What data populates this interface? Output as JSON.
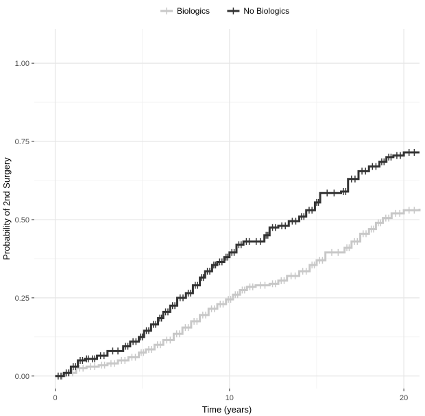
{
  "chart_data": {
    "type": "line",
    "subtype": "step (Kaplan-Meier cumulative incidence with censor marks)",
    "title": "",
    "xlabel": "Time (years)",
    "ylabel": "Probability of 2nd Surgery",
    "xlim": [
      -1.2,
      20.9
    ],
    "ylim": [
      -0.04,
      1.11
    ],
    "x_ticks": [
      0,
      10,
      20
    ],
    "x_tick_labels": [
      "0",
      "10",
      "20"
    ],
    "y_ticks": [
      0.0,
      0.25,
      0.5,
      0.75,
      1.0
    ],
    "y_tick_labels": [
      "0.00",
      "0.25",
      "0.50",
      "0.75",
      "1.00"
    ],
    "grid": true,
    "background": "white",
    "legend": {
      "position": "top",
      "entries": [
        "Biologics",
        "No Biologics"
      ]
    },
    "series": [
      {
        "name": "No Biologics",
        "color": "#333333",
        "x": [
          0,
          0.5,
          0.9,
          1.3,
          1.7,
          2.0,
          2.4,
          3.0,
          3.9,
          4.3,
          4.8,
          5.1,
          5.5,
          5.9,
          6.2,
          6.6,
          7.0,
          7.5,
          7.9,
          8.3,
          8.6,
          9.0,
          9.3,
          9.7,
          10.0,
          10.4,
          10.8,
          11.3,
          12.0,
          12.3,
          12.8,
          13.4,
          14.0,
          14.4,
          14.9,
          15.2,
          16.4,
          16.8,
          17.4,
          18.0,
          18.6,
          19.0,
          19.4,
          20.0,
          20.9
        ],
        "y": [
          0,
          0.01,
          0.03,
          0.05,
          0.055,
          0.055,
          0.065,
          0.08,
          0.095,
          0.11,
          0.125,
          0.145,
          0.165,
          0.185,
          0.205,
          0.225,
          0.25,
          0.265,
          0.29,
          0.315,
          0.335,
          0.355,
          0.365,
          0.38,
          0.395,
          0.42,
          0.43,
          0.43,
          0.45,
          0.475,
          0.48,
          0.495,
          0.51,
          0.53,
          0.555,
          0.585,
          0.59,
          0.63,
          0.655,
          0.67,
          0.685,
          0.7,
          0.705,
          0.715,
          0.715
        ]
      },
      {
        "name": "Biologics",
        "color": "#c8c8c8",
        "x": [
          0,
          0.6,
          1.2,
          1.8,
          2.5,
          3.0,
          3.6,
          4.2,
          4.8,
          5.2,
          5.7,
          6.2,
          6.8,
          7.3,
          7.8,
          8.3,
          8.8,
          9.3,
          9.8,
          10.2,
          10.6,
          11.0,
          11.5,
          12.3,
          12.8,
          13.3,
          14.0,
          14.6,
          15.0,
          15.5,
          16.6,
          17.0,
          17.5,
          18.0,
          18.4,
          18.8,
          19.3,
          20.0,
          20.9
        ],
        "y": [
          0,
          0.01,
          0.025,
          0.03,
          0.035,
          0.04,
          0.05,
          0.06,
          0.075,
          0.085,
          0.1,
          0.115,
          0.135,
          0.155,
          0.175,
          0.195,
          0.215,
          0.23,
          0.245,
          0.26,
          0.275,
          0.285,
          0.29,
          0.295,
          0.305,
          0.32,
          0.335,
          0.355,
          0.37,
          0.395,
          0.41,
          0.43,
          0.455,
          0.47,
          0.49,
          0.505,
          0.52,
          0.53,
          0.535
        ]
      }
    ]
  }
}
